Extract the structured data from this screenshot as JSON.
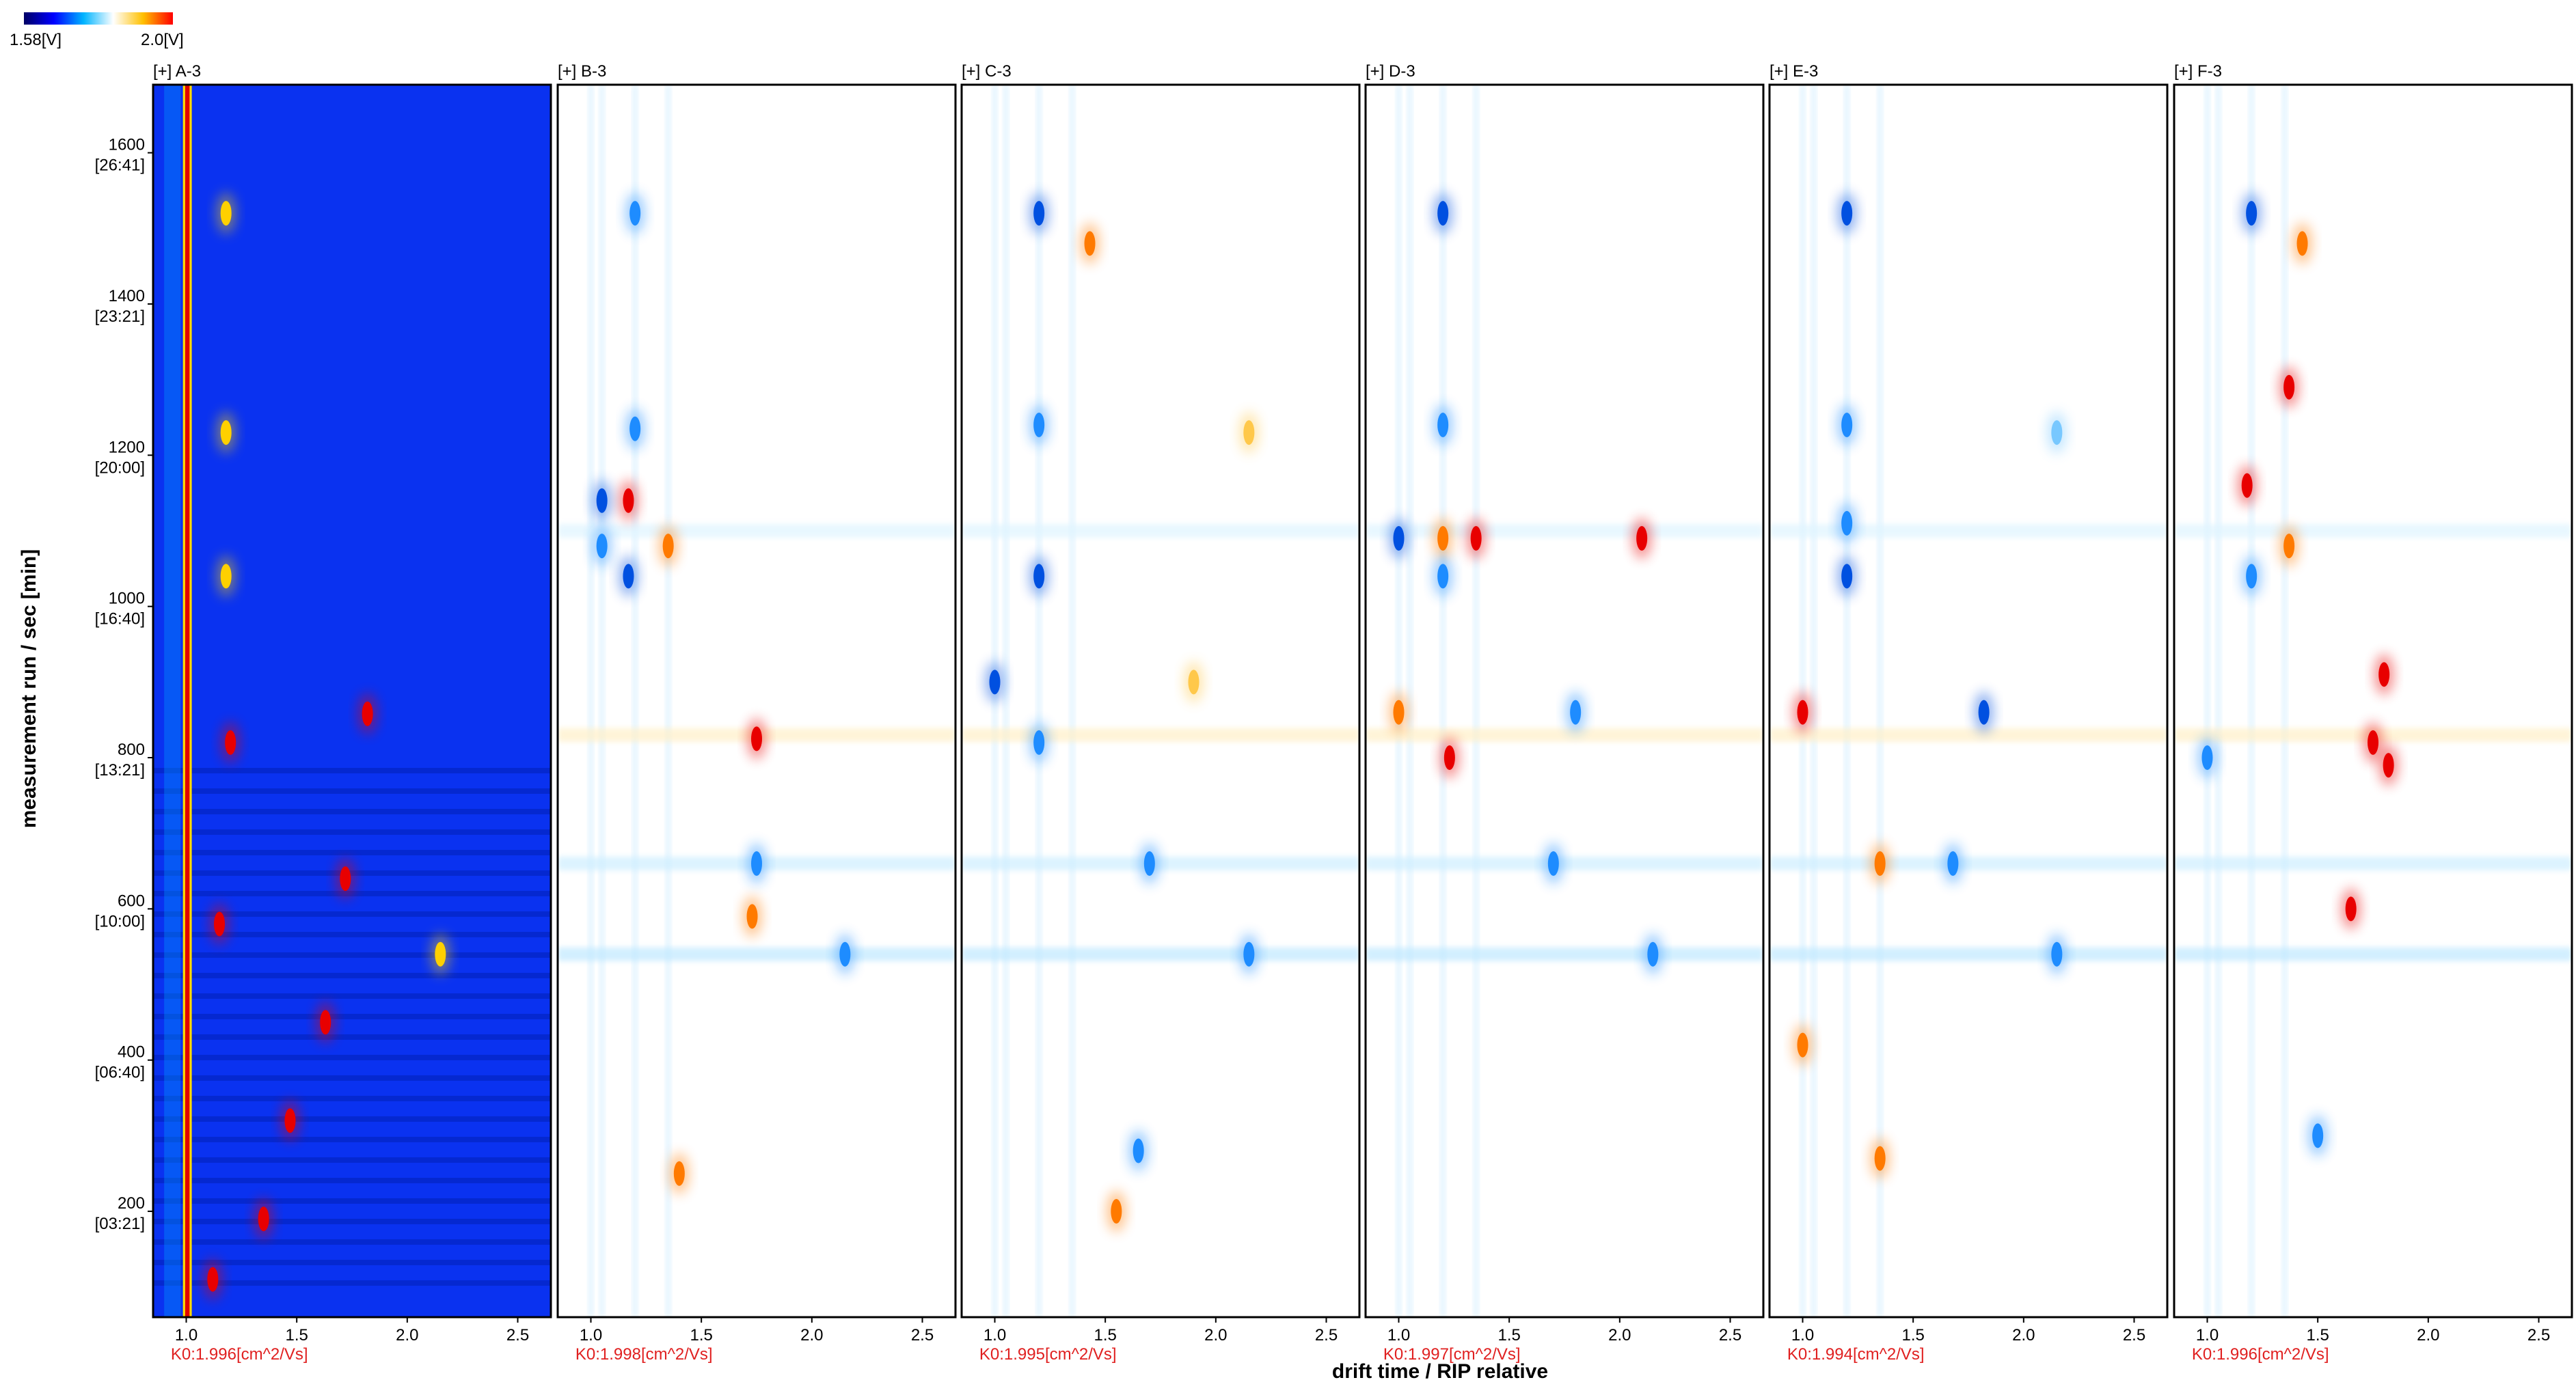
{
  "colorbar": {
    "min_label": "1.58[V]",
    "max_label": "2.0[V]",
    "colors": [
      "#000064",
      "#0000ff",
      "#00b4ff",
      "#ffffff",
      "#ffc000",
      "#ff0000"
    ]
  },
  "chart_data": {
    "type": "heatmap",
    "xlabel": "drift time / RIP relative",
    "ylabel": "measurement run / sec [min]",
    "xlim": [
      0.85,
      2.65
    ],
    "ylim": [
      60,
      1690
    ],
    "x_ticks": [
      "1.0",
      "1.5",
      "2.0",
      "2.5"
    ],
    "x_tick_values": [
      1.0,
      1.5,
      2.0,
      2.5
    ],
    "y_ticks": [
      {
        "value": 200,
        "sec": "200",
        "min": "[03:21]"
      },
      {
        "value": 400,
        "sec": "400",
        "min": "[06:40]"
      },
      {
        "value": 600,
        "sec": "600",
        "min": "[10:00]"
      },
      {
        "value": 800,
        "sec": "800",
        "min": "[13:21]"
      },
      {
        "value": 1000,
        "sec": "1000",
        "min": "[16:40]"
      },
      {
        "value": 1200,
        "sec": "1200",
        "min": "[20:00]"
      },
      {
        "value": 1400,
        "sec": "1400",
        "min": "[23:21]"
      },
      {
        "value": 1600,
        "sec": "1600",
        "min": "[26:41]"
      }
    ],
    "panels": [
      {
        "title": "[+] A-3",
        "k0": "K0:1.996[cm^2/Vs]",
        "mode": "reference",
        "spots": [
          {
            "x": 1.72,
            "y": 640,
            "v": 1
          },
          {
            "x": 1.82,
            "y": 858,
            "v": 1
          },
          {
            "x": 1.63,
            "y": 450,
            "v": 1
          },
          {
            "x": 1.47,
            "y": 320,
            "v": 1
          },
          {
            "x": 1.18,
            "y": 1040,
            "v": 0.7
          },
          {
            "x": 1.18,
            "y": 1230,
            "v": 0.6
          },
          {
            "x": 1.18,
            "y": 1520,
            "v": 0.6
          },
          {
            "x": 2.15,
            "y": 540,
            "v": 0.8
          },
          {
            "x": 1.35,
            "y": 190,
            "v": 1
          },
          {
            "x": 1.12,
            "y": 110,
            "v": 1
          },
          {
            "x": 1.2,
            "y": 820,
            "v": 0.9
          },
          {
            "x": 1.15,
            "y": 580,
            "v": 0.9
          }
        ]
      },
      {
        "title": "[+] B-3",
        "k0": "K0:1.998[cm^2/Vs]",
        "mode": "difference",
        "spots": [
          {
            "x": 1.2,
            "y": 1520,
            "v": -0.8
          },
          {
            "x": 1.2,
            "y": 1235,
            "v": -0.7
          },
          {
            "x": 1.17,
            "y": 1140,
            "v": 0.9
          },
          {
            "x": 1.35,
            "y": 1080,
            "v": 0.8
          },
          {
            "x": 1.17,
            "y": 1040,
            "v": -0.9
          },
          {
            "x": 1.75,
            "y": 825,
            "v": 1
          },
          {
            "x": 1.73,
            "y": 590,
            "v": 0.7
          },
          {
            "x": 1.75,
            "y": 660,
            "v": -0.8
          },
          {
            "x": 1.05,
            "y": 1140,
            "v": -0.9
          },
          {
            "x": 1.05,
            "y": 1080,
            "v": -0.8
          },
          {
            "x": 1.4,
            "y": 250,
            "v": 0.6
          },
          {
            "x": 2.15,
            "y": 540,
            "v": -0.6
          }
        ]
      },
      {
        "title": "[+] C-3",
        "k0": "K0:1.995[cm^2/Vs]",
        "mode": "difference",
        "spots": [
          {
            "x": 1.2,
            "y": 1520,
            "v": -0.9
          },
          {
            "x": 1.43,
            "y": 1480,
            "v": 0.7
          },
          {
            "x": 1.2,
            "y": 1240,
            "v": -0.8
          },
          {
            "x": 2.15,
            "y": 1230,
            "v": 0.5
          },
          {
            "x": 1.2,
            "y": 1040,
            "v": -0.9
          },
          {
            "x": 1.0,
            "y": 900,
            "v": -0.9
          },
          {
            "x": 1.9,
            "y": 900,
            "v": 0.5
          },
          {
            "x": 1.2,
            "y": 820,
            "v": -0.7
          },
          {
            "x": 1.65,
            "y": 280,
            "v": -0.7
          },
          {
            "x": 1.55,
            "y": 200,
            "v": 0.8
          },
          {
            "x": 2.15,
            "y": 540,
            "v": -0.6
          },
          {
            "x": 1.7,
            "y": 660,
            "v": -0.6
          }
        ]
      },
      {
        "title": "[+] D-3",
        "k0": "K0:1.997[cm^2/Vs]",
        "mode": "difference",
        "spots": [
          {
            "x": 1.2,
            "y": 1520,
            "v": -0.9
          },
          {
            "x": 1.2,
            "y": 1240,
            "v": -0.7
          },
          {
            "x": 1.0,
            "y": 1090,
            "v": -1
          },
          {
            "x": 1.2,
            "y": 1090,
            "v": 0.8
          },
          {
            "x": 1.35,
            "y": 1090,
            "v": 0.9
          },
          {
            "x": 2.1,
            "y": 1090,
            "v": 1
          },
          {
            "x": 1.2,
            "y": 1040,
            "v": -0.8
          },
          {
            "x": 1.8,
            "y": 860,
            "v": -0.8
          },
          {
            "x": 1.23,
            "y": 800,
            "v": 1
          },
          {
            "x": 1.0,
            "y": 860,
            "v": 0.8
          },
          {
            "x": 1.7,
            "y": 660,
            "v": -0.6
          },
          {
            "x": 2.15,
            "y": 540,
            "v": -0.6
          }
        ]
      },
      {
        "title": "[+] E-3",
        "k0": "K0:1.994[cm^2/Vs]",
        "mode": "difference",
        "spots": [
          {
            "x": 1.2,
            "y": 1520,
            "v": -0.9
          },
          {
            "x": 1.2,
            "y": 1240,
            "v": -0.7
          },
          {
            "x": 2.15,
            "y": 1230,
            "v": -0.4
          },
          {
            "x": 1.2,
            "y": 1040,
            "v": -0.9
          },
          {
            "x": 1.82,
            "y": 860,
            "v": -1
          },
          {
            "x": 1.0,
            "y": 860,
            "v": 0.9
          },
          {
            "x": 1.68,
            "y": 660,
            "v": -0.8
          },
          {
            "x": 1.35,
            "y": 660,
            "v": 0.7
          },
          {
            "x": 1.35,
            "y": 270,
            "v": 0.8
          },
          {
            "x": 2.15,
            "y": 540,
            "v": -0.7
          },
          {
            "x": 1.2,
            "y": 1110,
            "v": -0.6
          },
          {
            "x": 1.0,
            "y": 420,
            "v": 0.6
          }
        ]
      },
      {
        "title": "[+] F-3",
        "k0": "K0:1.996[cm^2/Vs]",
        "mode": "difference",
        "spots": [
          {
            "x": 1.2,
            "y": 1520,
            "v": -0.9
          },
          {
            "x": 1.43,
            "y": 1480,
            "v": 0.6
          },
          {
            "x": 1.37,
            "y": 1290,
            "v": 0.9
          },
          {
            "x": 1.18,
            "y": 1160,
            "v": 1
          },
          {
            "x": 1.37,
            "y": 1080,
            "v": 0.8
          },
          {
            "x": 1.8,
            "y": 910,
            "v": 1
          },
          {
            "x": 1.75,
            "y": 820,
            "v": 1
          },
          {
            "x": 1.82,
            "y": 790,
            "v": 1
          },
          {
            "x": 1.65,
            "y": 600,
            "v": 0.9
          },
          {
            "x": 1.0,
            "y": 800,
            "v": -0.8
          },
          {
            "x": 1.2,
            "y": 1040,
            "v": -0.8
          },
          {
            "x": 1.5,
            "y": 300,
            "v": -0.6
          }
        ]
      }
    ]
  }
}
